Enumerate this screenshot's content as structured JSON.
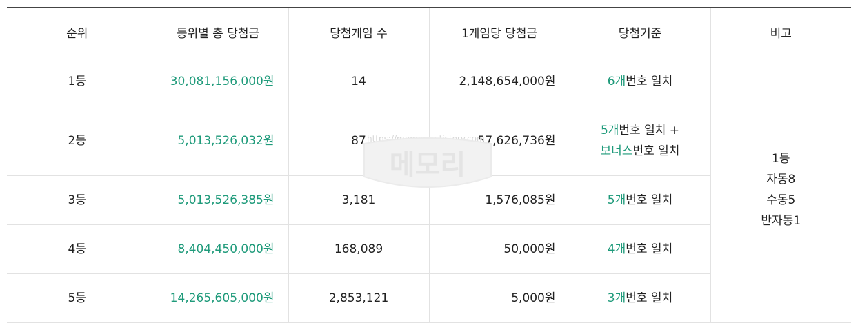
{
  "header": {
    "rank": "순위",
    "total_prize": "등위별 총 당첨금",
    "winner_count": "당첨게임 수",
    "prize_per_game": "1게임당 당첨금",
    "criteria": "당첨기준",
    "note": "비고"
  },
  "rows": [
    {
      "rank": "1등",
      "total_prize": "30,081,156,000원",
      "winner_count": "14",
      "prize_per_game": "2,148,654,000원",
      "criteria_a_num": "6개",
      "criteria_a_text": "번호 일치"
    },
    {
      "rank": "2등",
      "total_prize": "5,013,526,032원",
      "winner_count": "87",
      "prize_per_game": "57,626,736원",
      "criteria_a_num": "5개",
      "criteria_a_text": "번호 일치 +",
      "criteria_b_num": "보너스",
      "criteria_b_text": "번호 일치"
    },
    {
      "rank": "3등",
      "total_prize": "5,013,526,385원",
      "winner_count": "3,181",
      "prize_per_game": "1,576,085원",
      "criteria_a_num": "5개",
      "criteria_a_text": "번호 일치"
    },
    {
      "rank": "4등",
      "total_prize": "8,404,450,000원",
      "winner_count": "168,089",
      "prize_per_game": "50,000원",
      "criteria_a_num": "4개",
      "criteria_a_text": "번호 일치"
    },
    {
      "rank": "5등",
      "total_prize": "14,265,605,000원",
      "winner_count": "2,853,121",
      "prize_per_game": "5,000원",
      "criteria_a_num": "3개",
      "criteria_a_text": "번호 일치"
    }
  ],
  "note": {
    "line1": "1등",
    "line2": "자동8",
    "line3": "수동5",
    "line4": "반자동1"
  },
  "watermark": {
    "url": "https://memoryu.tistory.com",
    "logo_text": "메모리"
  },
  "colors": {
    "accent": "#1e9a7a",
    "text": "#222222",
    "border": "#e2e2e2"
  }
}
